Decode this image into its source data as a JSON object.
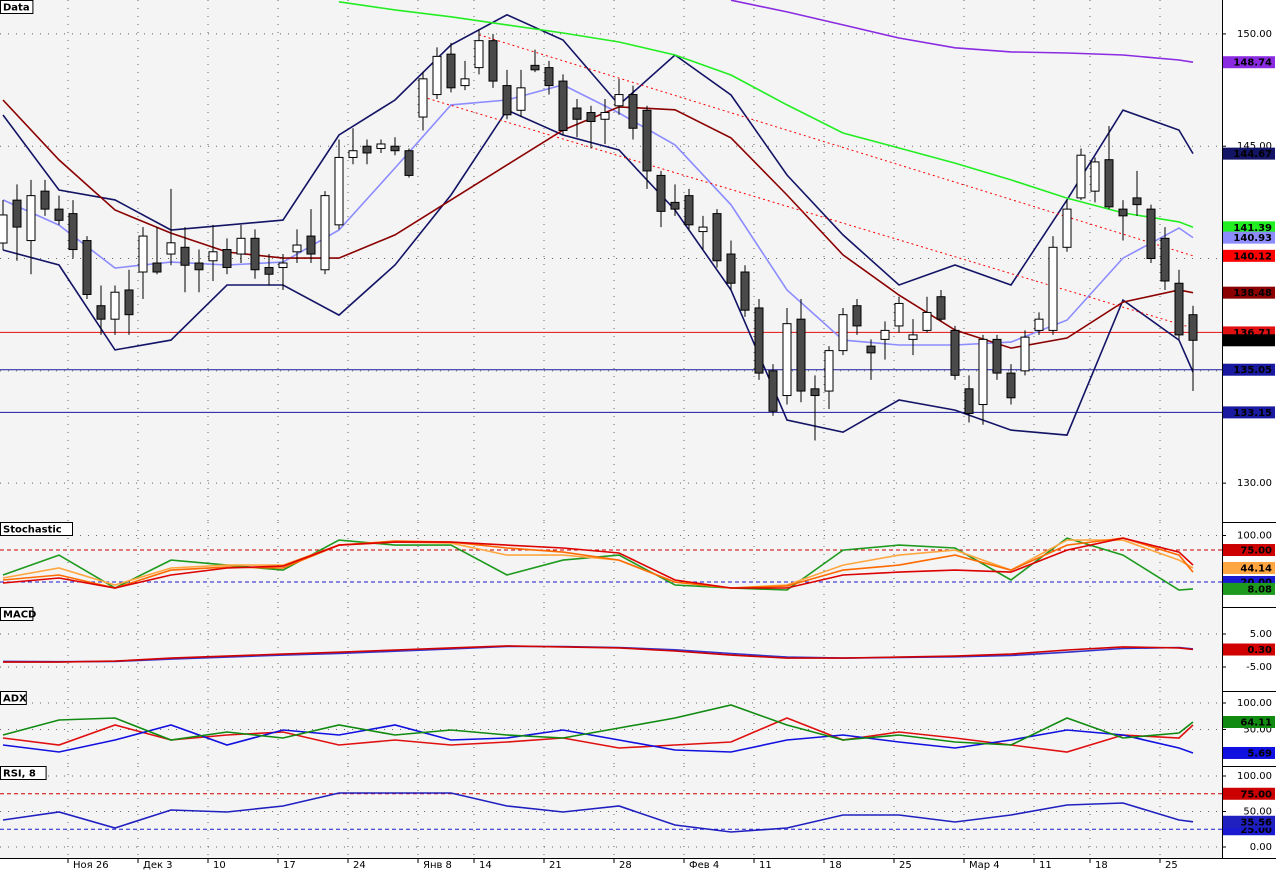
{
  "chart_data": [
    {
      "type": "candlestick",
      "title": "Data",
      "categories": [
        null,
        null,
        null,
        null,
        null,
        "Ноя 26",
        null,
        null,
        null,
        null,
        "Дек 3",
        null,
        null,
        null,
        null,
        "10",
        null,
        null,
        null,
        null,
        "17",
        null,
        null,
        null,
        null,
        "24",
        null,
        null,
        null,
        null,
        "Янв 8",
        null,
        null,
        null,
        "14",
        null,
        null,
        null,
        null,
        "21",
        null,
        null,
        null,
        null,
        "28",
        null,
        null,
        null,
        null,
        "Фев 4",
        null,
        null,
        null,
        null,
        "11",
        null,
        null,
        null,
        null,
        "18",
        null,
        null,
        null,
        null,
        "25",
        null,
        null,
        null,
        null,
        "Мар 4",
        null,
        null,
        null,
        null,
        "11",
        null,
        null,
        null,
        "18",
        null,
        null,
        null,
        null,
        "25",
        null,
        null
      ],
      "open": [
        140.69,
        142.6,
        140.8,
        143.0,
        142.2,
        142.0,
        140.8,
        137.9,
        137.3,
        138.6,
        139.4,
        139.8,
        140.2,
        140.5,
        139.8,
        139.9,
        140.4,
        140.2,
        140.9,
        139.6,
        139.6,
        140.3,
        141.0,
        139.5,
        141.5,
        144.5,
        145.0,
        144.9,
        145.0,
        144.8,
        146.3,
        147.3,
        149.1,
        147.7,
        148.5,
        149.7,
        147.7,
        146.6,
        148.6,
        148.5,
        147.9,
        146.7,
        146.5,
        146.2,
        146.8,
        147.3,
        146.6,
        143.7,
        142.5,
        142.8,
        141.2,
        142.0,
        140.2,
        139.4,
        137.8,
        135.0,
        133.9,
        137.3,
        134.2,
        134.1,
        135.9,
        137.9,
        136.1,
        136.4,
        137.0,
        136.4,
        136.8,
        138.3,
        136.8,
        134.2,
        133.5,
        136.4,
        134.9,
        135.0,
        136.8,
        136.8,
        140.5,
        142.7,
        143.0,
        144.4,
        142.2,
        142.7,
        142.2,
        140.9,
        138.9,
        137.5
      ],
      "high": [
        142.6,
        143.3,
        143.5,
        143.5,
        142.8,
        142.6,
        141.0,
        138.8,
        138.8,
        139.5,
        141.4,
        141.4,
        143.1,
        141.4,
        140.4,
        141.5,
        140.9,
        141.5,
        141.3,
        140.2,
        140.2,
        141.3,
        142.2,
        143.0,
        145.3,
        145.8,
        145.3,
        145.3,
        145.4,
        144.9,
        148.3,
        149.4,
        149.6,
        148.8,
        150.2,
        150.0,
        148.4,
        148.4,
        149.3,
        148.8,
        148.2,
        147.1,
        146.8,
        147.1,
        148.0,
        147.7,
        146.8,
        143.9,
        143.3,
        143.1,
        141.9,
        142.2,
        140.8,
        139.7,
        138.2,
        135.3,
        137.8,
        138.2,
        134.8,
        136.1,
        137.8,
        138.2,
        136.4,
        137.2,
        138.3,
        137.3,
        138.3,
        138.6,
        137.0,
        134.8,
        136.6,
        136.6,
        135.3,
        136.8,
        137.6,
        141.0,
        142.6,
        144.9,
        144.5,
        145.9,
        142.6,
        143.9,
        142.4,
        141.4,
        139.5,
        137.9
      ],
      "low": [
        140.38,
        139.9,
        139.3,
        141.9,
        141.5,
        140.0,
        138.2,
        136.6,
        136.6,
        136.6,
        138.2,
        139.3,
        139.7,
        138.5,
        138.5,
        139.0,
        139.3,
        139.8,
        139.1,
        138.8,
        138.6,
        139.8,
        139.8,
        139.3,
        141.3,
        144.2,
        144.2,
        144.7,
        144.6,
        143.6,
        145.7,
        147.1,
        147.4,
        147.5,
        148.2,
        147.6,
        146.2,
        146.3,
        148.3,
        147.3,
        145.5,
        145.4,
        144.9,
        145.1,
        146.4,
        145.3,
        143.1,
        141.4,
        141.9,
        141.3,
        140.4,
        139.6,
        138.6,
        137.4,
        134.6,
        133.0,
        133.5,
        133.6,
        131.9,
        133.3,
        135.7,
        136.6,
        134.6,
        135.5,
        136.7,
        135.7,
        136.7,
        137.2,
        134.6,
        132.7,
        132.6,
        134.6,
        133.5,
        134.8,
        136.6,
        136.6,
        140.3,
        142.6,
        142.5,
        142.2,
        140.8,
        141.9,
        139.8,
        138.6,
        136.4,
        134.1
      ],
      "close": [
        141.94,
        141.4,
        142.8,
        142.2,
        141.7,
        140.4,
        138.4,
        137.3,
        138.5,
        137.5,
        141.0,
        139.4,
        140.7,
        139.7,
        139.5,
        140.3,
        139.6,
        140.9,
        139.5,
        139.3,
        139.8,
        140.6,
        140.2,
        142.8,
        144.5,
        144.8,
        144.7,
        145.1,
        144.8,
        143.7,
        148.0,
        149.0,
        147.6,
        148.0,
        149.7,
        147.9,
        146.4,
        147.6,
        148.4,
        147.7,
        145.7,
        146.2,
        146.1,
        146.5,
        147.3,
        145.8,
        143.9,
        142.1,
        142.2,
        141.5,
        141.4,
        139.9,
        138.9,
        137.7,
        134.9,
        133.2,
        137.1,
        134.1,
        133.9,
        135.9,
        137.5,
        137.0,
        135.8,
        136.8,
        138.0,
        136.6,
        137.6,
        137.3,
        134.8,
        133.1,
        136.4,
        134.9,
        133.8,
        136.5,
        137.3,
        140.5,
        142.2,
        144.6,
        144.3,
        142.3,
        141.9,
        142.4,
        140.0,
        139.0,
        136.6,
        136.36
      ],
      "last_tag": "136.36",
      "ylim": [
        128.27,
        151.51
      ],
      "yticks": [
        {
          "value": 150,
          "label": "150.00"
        },
        {
          "value": 145,
          "label": "145.00"
        },
        {
          "value": 140,
          "label": "140.00"
        },
        {
          "value": 135,
          "label": "135.00"
        },
        {
          "value": 130,
          "label": "130.00"
        }
      ],
      "x": [
        0,
        4,
        8,
        12,
        16,
        20,
        24,
        28,
        32,
        36,
        40,
        44,
        48,
        52,
        56,
        60,
        64,
        68,
        72,
        76,
        80,
        84,
        85
      ],
      "series": [
        {
          "color": "#141466",
          "values": [
            146.39,
            143.05,
            142.61,
            141.27,
            141.49,
            141.71,
            145.5,
            147.06,
            149.51,
            150.85,
            149.73,
            146.84,
            149.06,
            147.28,
            143.72,
            141.05,
            138.82,
            139.71,
            138.82,
            142.61,
            146.61,
            145.72,
            144.67
          ],
          "tag": "144.67"
        },
        {
          "color": "#141466",
          "values": [
            140.38,
            139.71,
            135.93,
            136.37,
            138.82,
            138.82,
            137.48,
            139.71,
            142.83,
            146.61,
            145.5,
            144.83,
            142.16,
            138.6,
            132.81,
            132.27,
            133.7,
            133.25,
            132.36,
            132.14,
            138.15,
            136.37,
            134.95
          ]
        },
        {
          "color": "#22ee22",
          "values": [
            null,
            null,
            null,
            null,
            null,
            null,
            151.43,
            151.07,
            150.76,
            150.4,
            150.04,
            149.64,
            149.06,
            148.17,
            146.84,
            145.59,
            144.92,
            144.25,
            143.5,
            142.69,
            142.03,
            141.63,
            141.39
          ],
          "tag": "141.39"
        },
        {
          "color": "#8a2be2",
          "values": [
            null,
            null,
            null,
            null,
            null,
            null,
            null,
            null,
            null,
            null,
            null,
            null,
            null,
            151.5,
            150.98,
            150.4,
            149.82,
            149.38,
            149.2,
            149.15,
            149.06,
            148.84,
            148.74
          ],
          "tag": "148.74"
        },
        {
          "color": "#8c8cff",
          "values": [
            142.61,
            141.49,
            139.58,
            139.84,
            139.71,
            139.84,
            141.27,
            144.03,
            146.84,
            147.06,
            147.73,
            146.48,
            145.06,
            142.39,
            138.6,
            136.37,
            136.15,
            136.15,
            136.28,
            137.26,
            140.02,
            141.36,
            140.93
          ],
          "tag": "140.93"
        },
        {
          "color": "#8b0000",
          "values": [
            147.06,
            144.39,
            142.16,
            141.13,
            140.29,
            140.02,
            140.02,
            141.05,
            142.61,
            144.17,
            145.72,
            146.75,
            146.62,
            145.37,
            142.83,
            140.16,
            138.37,
            136.82,
            136.01,
            136.46,
            138.06,
            138.6,
            138.48
          ],
          "tag": "138.48"
        },
        {
          "color": "#ff0000",
          "style": "dotted",
          "x": [
            34,
            85
          ],
          "values": [
            149.96,
            140.12
          ],
          "tag": "140.12"
        },
        {
          "color": "#ff0000",
          "style": "dotted",
          "x": [
            30,
            85
          ],
          "values": [
            147.19,
            136.9
          ]
        }
      ],
      "hlines": [
        {
          "value": 136.71,
          "color": "#e01010",
          "tag": "136.71"
        },
        {
          "value": 135.05,
          "color": "#1a1aa0",
          "tag": "135.05"
        },
        {
          "value": 133.15,
          "color": "#1a1aa0",
          "tag": "133.15"
        }
      ]
    },
    {
      "type": "line",
      "title": "Stochastic",
      "ylim": [
        -23,
        123.2
      ],
      "yticks": [
        {
          "value": 100,
          "label": "100.00"
        }
      ],
      "x": [
        0,
        4,
        8,
        12,
        16,
        20,
        24,
        28,
        32,
        36,
        40,
        44,
        48,
        52,
        56,
        60,
        64,
        68,
        72,
        76,
        80,
        84,
        85
      ],
      "hlines": [
        {
          "value": 75,
          "color": "#cc0000",
          "style": "dashed",
          "tag": "75.00"
        },
        {
          "value": 20,
          "color": "#1a1ad0",
          "style": "dashed",
          "tag": "20.00"
        }
      ],
      "series": [
        {
          "color": "#1e9a1e",
          "values": [
            32,
            66.3,
            9.6,
            57.7,
            49.1,
            40.5,
            92.1,
            83.5,
            83.5,
            32,
            57.7,
            66.3,
            14.8,
            9.6,
            6.2,
            74.9,
            83.5,
            78.4,
            23.4,
            95.5,
            66.3,
            6.2,
            8.08
          ],
          "tag": "8.08"
        },
        {
          "color": "#ffa640",
          "values": [
            26.8,
            44,
            14.8,
            44,
            49.1,
            49.1,
            83.5,
            88.6,
            86.9,
            66.3,
            66.3,
            57.7,
            19.9,
            9.6,
            14.8,
            49.1,
            66.3,
            74.9,
            40.5,
            92.1,
            92.1,
            57.7,
            44.14
          ],
          "tag": "44.14"
        },
        {
          "color": "#ff6a00",
          "values": [
            23.4,
            32,
            9.6,
            40.5,
            45.7,
            44,
            83.5,
            90.4,
            88.6,
            78.4,
            71.5,
            57.7,
            19.9,
            9.6,
            13.1,
            40.5,
            49.1,
            66.3,
            40.5,
            83.5,
            95.5,
            66.3,
            37.1
          ]
        },
        {
          "color": "#dd0000",
          "values": [
            18.2,
            26.8,
            9.6,
            32,
            44,
            47.4,
            83.5,
            88.6,
            88.6,
            83.5,
            78.4,
            69.8,
            23.4,
            9.6,
            9.6,
            32,
            37.1,
            40.5,
            37.1,
            74.9,
            95.5,
            71.5,
            49.1
          ]
        }
      ]
    },
    {
      "type": "line",
      "title": "MACD",
      "ylim": [
        -12.27,
        13.18
      ],
      "yticks": [
        {
          "value": 5,
          "label": "5.00"
        },
        {
          "value": -5,
          "label": "-5.00"
        }
      ],
      "x": [
        0,
        4,
        8,
        12,
        16,
        20,
        24,
        28,
        32,
        36,
        40,
        44,
        48,
        52,
        56,
        60,
        64,
        68,
        72,
        76,
        80,
        84,
        85
      ],
      "series": [
        {
          "color": "#3333cc",
          "values": [
            -3.3,
            -3.4,
            -3.3,
            -2.6,
            -2.0,
            -1.4,
            -0.9,
            -0.2,
            0.5,
            1.2,
            1.2,
            0.9,
            0.2,
            -0.9,
            -2.0,
            -2.3,
            -2.1,
            -1.9,
            -1.5,
            -0.5,
            0.6,
            0.9,
            0.5
          ]
        },
        {
          "color": "#d00000",
          "values": [
            -3.5,
            -3.5,
            -3.2,
            -2.3,
            -1.7,
            -1.1,
            -0.5,
            0.15,
            0.8,
            1.4,
            1.1,
            0.8,
            -0.15,
            -1.4,
            -2.3,
            -2.3,
            -2.0,
            -1.7,
            -1.1,
            0.15,
            1.1,
            0.8,
            0.3
          ],
          "tag": "0.30"
        }
      ]
    },
    {
      "type": "line",
      "title": "ADX",
      "ylim": [
        -18.9,
        122.6
      ],
      "yticks": [
        {
          "value": 100,
          "label": "100.00"
        },
        {
          "value": 50,
          "label": "50.00"
        }
      ],
      "x": [
        0,
        4,
        8,
        12,
        16,
        20,
        24,
        28,
        32,
        36,
        40,
        44,
        48,
        52,
        56,
        60,
        64,
        68,
        72,
        76,
        80,
        84,
        85
      ],
      "series": [
        {
          "color": "#e01010",
          "values": [
            34,
            20.8,
            58.5,
            30.2,
            39.6,
            45.3,
            20.8,
            30.2,
            20.8,
            26.4,
            34,
            15.1,
            20.8,
            26.4,
            71.7,
            30.2,
            45.3,
            34,
            20.8,
            7.5,
            39.6,
            34,
            58.5
          ]
        },
        {
          "color": "#1010e0",
          "values": [
            20.8,
            7.5,
            30.2,
            58.5,
            20.8,
            49,
            39.6,
            58.5,
            30.2,
            34,
            49,
            30.2,
            11.3,
            7.5,
            30.2,
            39.6,
            26.4,
            15.1,
            30.2,
            49,
            39.6,
            15.1,
            5.69
          ],
          "tag": "5.69"
        },
        {
          "color": "#108a10",
          "values": [
            39.6,
            67.9,
            71.7,
            30.2,
            45.3,
            34,
            58.5,
            39.6,
            49,
            39.6,
            34,
            52.8,
            71.7,
            96.2,
            58.5,
            30.2,
            39.6,
            26.4,
            20.8,
            71.7,
            34,
            43.4,
            64.11
          ],
          "tag": "64.11"
        }
      ]
    },
    {
      "type": "line",
      "title": "RSI, 8",
      "ylim": [
        -15.5,
        114.1
      ],
      "yticks": [
        {
          "value": 100,
          "label": "100.00"
        },
        {
          "value": 50,
          "label": "50.00"
        },
        {
          "value": 0,
          "label": "0.00"
        }
      ],
      "x": [
        0,
        4,
        8,
        12,
        16,
        20,
        24,
        28,
        32,
        36,
        40,
        44,
        48,
        52,
        56,
        60,
        64,
        68,
        72,
        76,
        80,
        84,
        85
      ],
      "hlines": [
        {
          "value": 75,
          "color": "#cc0000",
          "style": "dashed",
          "tag": "75.00"
        },
        {
          "value": 25,
          "color": "#1a1ad0",
          "style": "dashed",
          "tag": "25.00"
        }
      ],
      "series": [
        {
          "color": "#2020c0",
          "values": [
            38,
            49.3,
            26.8,
            52.1,
            49.3,
            57.7,
            76,
            76,
            76,
            57.7,
            49.3,
            57.7,
            31,
            21.1,
            26.8,
            45.1,
            45.1,
            35.2,
            45.1,
            59.2,
            62,
            38,
            35.56
          ],
          "tag": "35.56"
        }
      ]
    }
  ]
}
